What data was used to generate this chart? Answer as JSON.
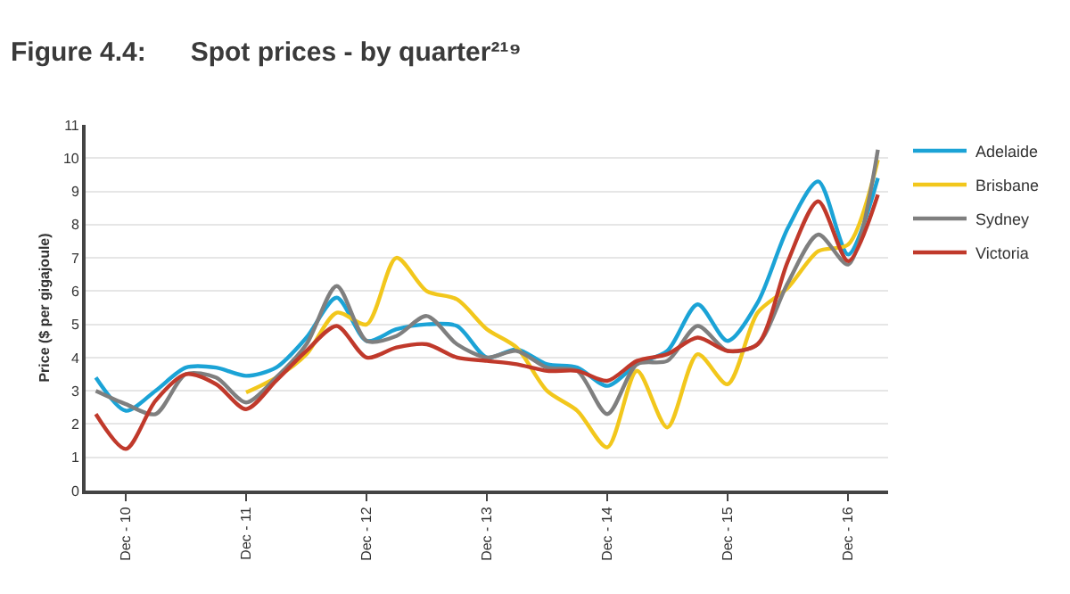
{
  "chart_data": {
    "type": "line",
    "title": "Figure 4.4:      Spot prices - by quarter²¹⁹",
    "ylabel": "Price ($ per gigajoule)",
    "x": [
      "2010-09",
      "2010-12",
      "2011-03",
      "2011-06",
      "2011-09",
      "2011-12",
      "2012-03",
      "2012-06",
      "2012-09",
      "2012-12",
      "2013-03",
      "2013-06",
      "2013-09",
      "2013-12",
      "2014-03",
      "2014-06",
      "2014-09",
      "2014-12",
      "2015-03",
      "2015-06",
      "2015-09",
      "2015-12",
      "2016-03",
      "2016-06",
      "2016-09",
      "2016-12",
      "2017-03"
    ],
    "series": [
      {
        "name": "Adelaide",
        "color": "#1ba3d6",
        "values": [
          3.4,
          2.4,
          3.0,
          3.7,
          3.7,
          3.45,
          3.7,
          4.6,
          5.8,
          4.5,
          4.85,
          5.0,
          4.95,
          4.0,
          4.25,
          3.8,
          3.7,
          3.15,
          3.8,
          4.2,
          5.6,
          4.5,
          5.65,
          7.9,
          9.3,
          7.1,
          9.4
        ]
      },
      {
        "name": "Brisbane",
        "color": "#f2c71c",
        "values": [
          null,
          null,
          null,
          null,
          null,
          2.95,
          3.4,
          4.1,
          5.35,
          5.0,
          7.0,
          6.0,
          5.75,
          4.85,
          4.3,
          3.0,
          2.4,
          1.3,
          3.6,
          1.9,
          4.1,
          3.2,
          5.35,
          6.1,
          7.2,
          7.4,
          9.95
        ]
      },
      {
        "name": "Sydney",
        "color": "#7f7f7f",
        "values": [
          3.0,
          2.6,
          2.3,
          3.5,
          3.4,
          2.65,
          3.4,
          4.4,
          6.15,
          4.5,
          4.65,
          5.25,
          4.4,
          4.0,
          4.2,
          3.7,
          3.6,
          2.3,
          3.8,
          3.9,
          4.95,
          4.2,
          4.4,
          6.25,
          7.7,
          6.8,
          10.25
        ]
      },
      {
        "name": "Victoria",
        "color": "#c0392b",
        "values": [
          2.3,
          1.25,
          2.7,
          3.5,
          3.2,
          2.45,
          3.3,
          4.2,
          4.95,
          4.0,
          4.3,
          4.4,
          4.0,
          3.9,
          3.8,
          3.6,
          3.6,
          3.3,
          3.9,
          4.1,
          4.6,
          4.2,
          4.4,
          6.9,
          8.7,
          6.9,
          8.9
        ]
      }
    ],
    "xlim": [
      "2010-08",
      "2017-04"
    ],
    "xticks": [
      {
        "value": "2010-12",
        "label": "Dec - 10"
      },
      {
        "value": "2011-12",
        "label": "Dec - 11"
      },
      {
        "value": "2012-12",
        "label": "Dec - 12"
      },
      {
        "value": "2013-12",
        "label": "Dec - 13"
      },
      {
        "value": "2014-12",
        "label": "Dec - 14"
      },
      {
        "value": "2015-12",
        "label": "Dec - 15"
      },
      {
        "value": "2016-12",
        "label": "Dec - 16"
      }
    ],
    "ylim": [
      0,
      11
    ],
    "yticks": [
      0,
      1,
      2,
      3,
      4,
      5,
      6,
      7,
      8,
      9,
      10,
      11
    ],
    "grid": "y",
    "legend": "top right",
    "marker": "none",
    "line_style": "solid"
  }
}
